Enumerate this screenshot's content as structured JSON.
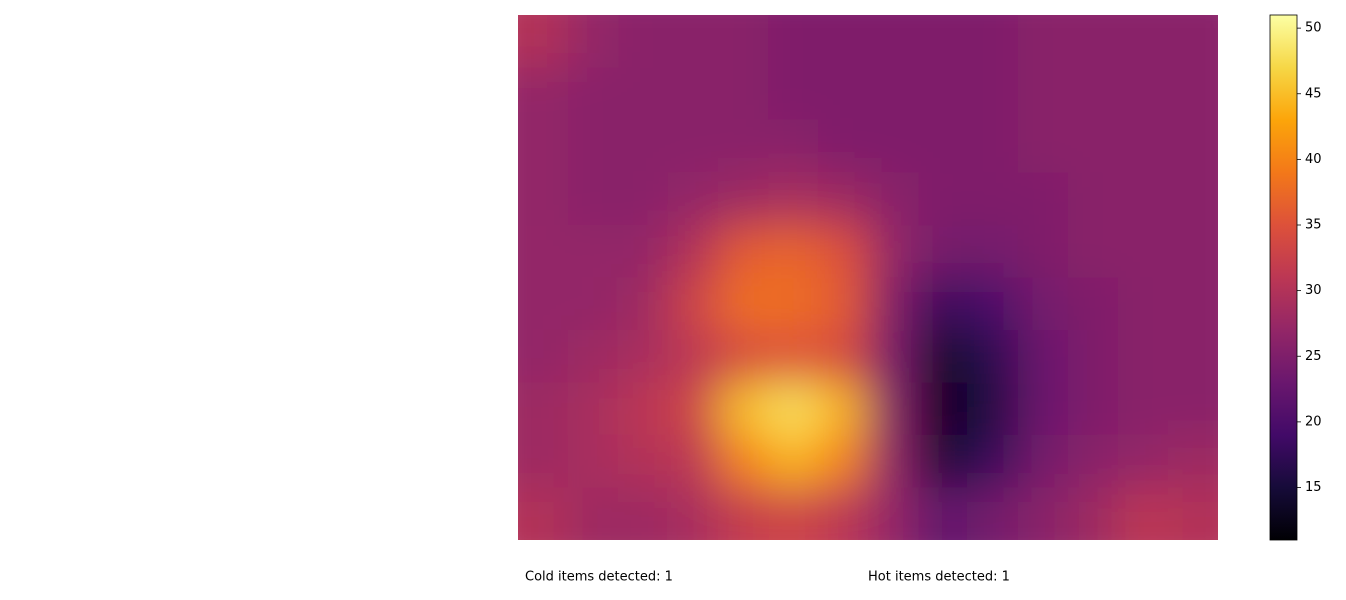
{
  "chart_data": {
    "type": "heatmap",
    "colormap": "inferno",
    "values": [
      [
        30,
        27,
        26,
        26,
        26,
        25,
        25,
        25,
        25,
        25,
        26,
        26,
        26,
        26
      ],
      [
        27,
        26,
        26,
        26,
        26,
        25,
        25,
        25,
        25,
        25,
        26,
        26,
        26,
        26
      ],
      [
        27,
        26,
        26,
        26,
        26,
        26,
        25,
        25,
        25,
        25,
        26,
        26,
        26,
        26
      ],
      [
        27,
        26,
        26,
        27,
        28,
        29,
        28,
        26,
        25,
        25,
        25,
        26,
        26,
        26
      ],
      [
        27,
        27,
        27,
        30,
        36,
        37,
        35,
        27,
        24,
        24,
        25,
        26,
        26,
        26
      ],
      [
        27,
        27,
        28,
        33,
        38,
        38,
        36,
        25,
        18,
        20,
        24,
        25,
        26,
        26
      ],
      [
        27,
        28,
        29,
        31,
        34,
        35,
        34,
        24,
        14,
        17,
        23,
        25,
        26,
        26
      ],
      [
        28,
        29,
        31,
        33,
        45,
        48,
        44,
        25,
        13,
        16,
        23,
        25,
        26,
        26
      ],
      [
        28,
        29,
        30,
        31,
        40,
        44,
        40,
        26,
        15,
        18,
        24,
        26,
        27,
        28
      ],
      [
        30,
        28,
        28,
        29,
        32,
        33,
        31,
        27,
        22,
        24,
        26,
        28,
        31,
        30
      ]
    ],
    "clim": [
      11,
      51
    ],
    "cticks": [
      15,
      20,
      25,
      30,
      35,
      40,
      45,
      50
    ],
    "annotations": [
      {
        "text": "Cold items detected: 1",
        "color": "#0000ff"
      },
      {
        "text": "Hot items detected: 1",
        "color": "#ff0000"
      }
    ]
  }
}
